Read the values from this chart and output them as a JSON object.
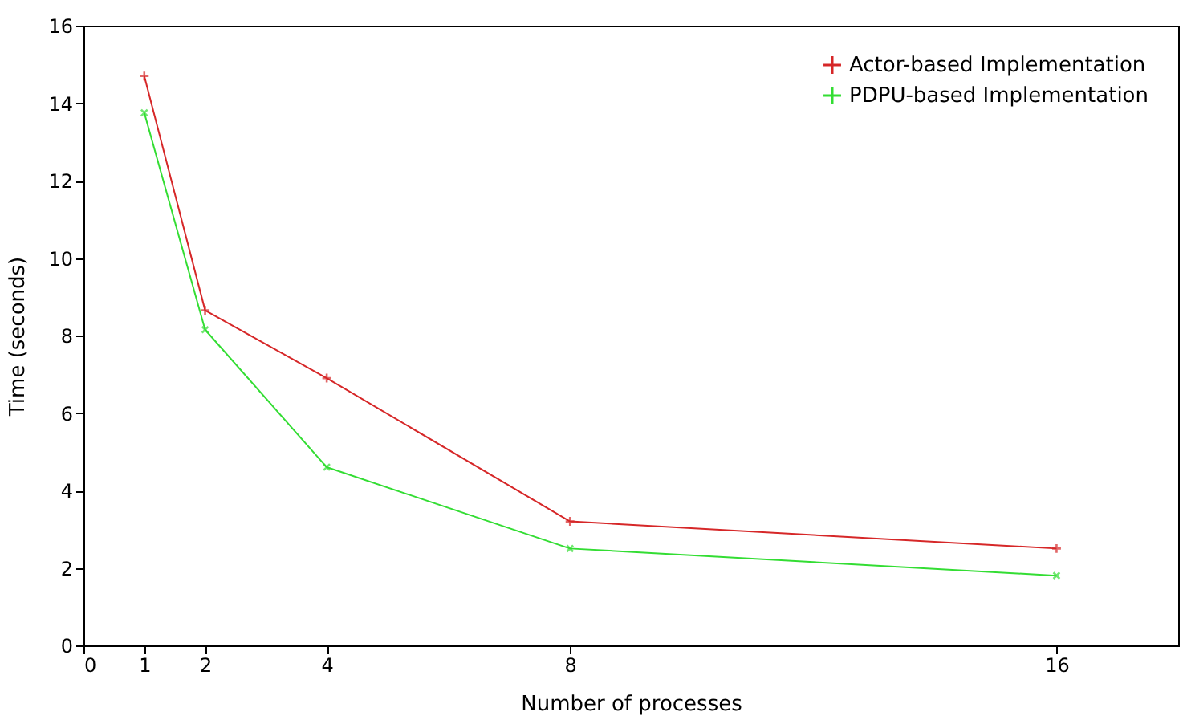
{
  "chart_data": {
    "type": "line",
    "xlabel": "Number of processes",
    "ylabel": "Time (seconds)",
    "x": [
      1,
      2,
      4,
      8,
      16
    ],
    "series": [
      {
        "name": "Actor-based Implementation",
        "color": "#d62728",
        "values": [
          14.7,
          8.65,
          6.9,
          3.2,
          2.5
        ]
      },
      {
        "name": "PDPU-based Implementation",
        "color": "#33dd33",
        "values": [
          13.75,
          8.15,
          4.6,
          2.5,
          1.8
        ]
      }
    ],
    "xlim": [
      0,
      18
    ],
    "xticks": [
      0,
      1,
      2,
      4,
      8,
      16
    ],
    "ylim": [
      0,
      16
    ],
    "yticks": [
      0,
      2,
      4,
      6,
      8,
      10,
      12,
      14,
      16
    ],
    "grid": false,
    "legend": "top right",
    "marker": "cross",
    "line_style": "solid"
  }
}
